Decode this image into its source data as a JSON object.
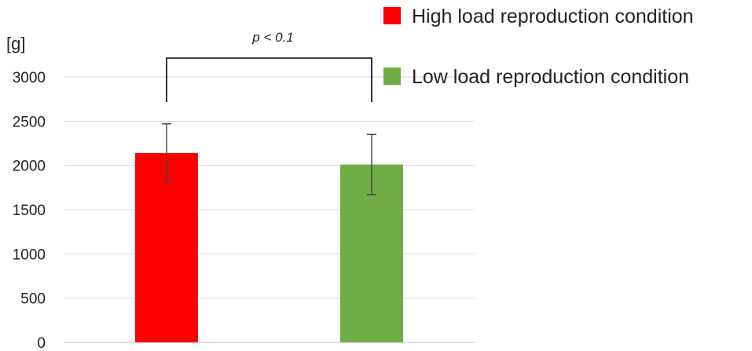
{
  "chart_data": {
    "type": "bar",
    "ylabel": "[g]",
    "ylim": [
      0,
      3000
    ],
    "yticks": [
      0,
      500,
      1000,
      1500,
      2000,
      2500,
      3000
    ],
    "grid": true,
    "legend_position": "top-right",
    "series": [
      {
        "name": "High load reproduction condition",
        "value": 2140,
        "error": 330,
        "color": "#ff0000"
      },
      {
        "name": "Low load reproduction condition",
        "value": 2010,
        "error": 340,
        "color": "#70ad47"
      }
    ],
    "annotation": {
      "text": "p < 0.1",
      "type": "significance-bracket",
      "between": [
        0,
        1
      ]
    }
  }
}
